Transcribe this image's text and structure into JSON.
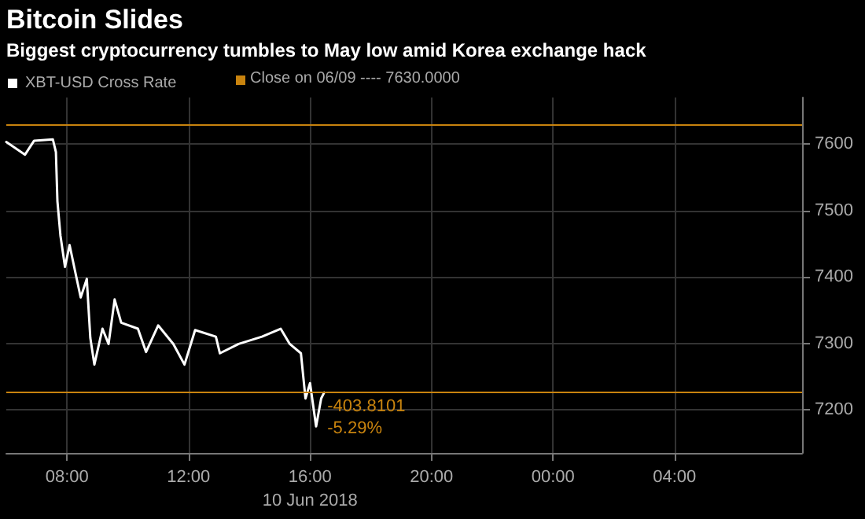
{
  "chart_data": {
    "type": "line",
    "title": "Bitcoin Slides",
    "subtitle": "Biggest cryptocurrency tumbles to May low amid Korea exchange hack",
    "x": [
      "2018-06-10T06:00",
      "2018-06-10T06:37",
      "2018-06-10T06:55",
      "2018-06-10T07:32",
      "2018-06-10T07:38",
      "2018-06-10T07:41",
      "2018-06-10T07:47",
      "2018-06-10T07:56",
      "2018-06-10T08:05",
      "2018-06-10T08:18",
      "2018-06-10T08:27",
      "2018-06-10T08:39",
      "2018-06-10T08:46",
      "2018-06-10T08:54",
      "2018-06-10T09:10",
      "2018-06-10T09:22",
      "2018-06-10T09:34",
      "2018-06-10T09:47",
      "2018-06-10T10:20",
      "2018-06-10T10:36",
      "2018-06-10T11:00",
      "2018-06-10T11:30",
      "2018-06-10T11:52",
      "2018-06-10T12:13",
      "2018-06-10T12:54",
      "2018-06-10T13:02",
      "2018-06-10T13:39",
      "2018-06-10T14:25",
      "2018-06-10T15:02",
      "2018-06-10T15:20",
      "2018-06-10T15:42",
      "2018-06-10T15:51",
      "2018-06-10T16:00",
      "2018-06-10T16:12",
      "2018-06-10T16:22",
      "2018-06-10T16:28"
    ],
    "series": [
      {
        "name": "XBT-USD Cross Rate",
        "color": "#ffffff",
        "values": [
          7603,
          7584,
          7605,
          7607,
          7588,
          7514,
          7462,
          7415,
          7448,
          7401,
          7369,
          7397,
          7308,
          7268,
          7322,
          7299,
          7366,
          7331,
          7322,
          7287,
          7327,
          7299,
          7268,
          7320,
          7310,
          7285,
          7299,
          7310,
          7322,
          7299,
          7285,
          7217,
          7240,
          7175,
          7217,
          7226
        ]
      }
    ],
    "xlim": [
      "2018-06-10T06:00",
      "2018-06-11T08:12"
    ],
    "xticks": [
      {
        "value": "2018-06-10T08:00",
        "label": "08:00"
      },
      {
        "value": "2018-06-10T12:00",
        "label": "12:00"
      },
      {
        "value": "2018-06-10T16:00",
        "label": "16:00\n10 Jun 2018"
      },
      {
        "value": "2018-06-10T20:00",
        "label": "20:00"
      },
      {
        "value": "2018-06-11T00:00",
        "label": "00:00"
      },
      {
        "value": "2018-06-11T04:00",
        "label": "04:00"
      }
    ],
    "ylim": [
      7135,
      7670
    ],
    "yticks": [
      7200,
      7300,
      7400,
      7500,
      7600
    ],
    "ref_lines": [
      {
        "axis": "y",
        "value": 7630,
        "label": "Close on 06/09 ---- 7630.0000",
        "color": "#c8830e"
      },
      {
        "axis": "y",
        "value": 7226,
        "color": "#c8830e"
      }
    ],
    "annotations": [
      {
        "text": "-403.8101\n-5.29%",
        "x": "2018-06-10T16:28",
        "y": 7226
      }
    ],
    "grid": true,
    "legend": "top left",
    "marker": "none",
    "line_style": "solid"
  }
}
